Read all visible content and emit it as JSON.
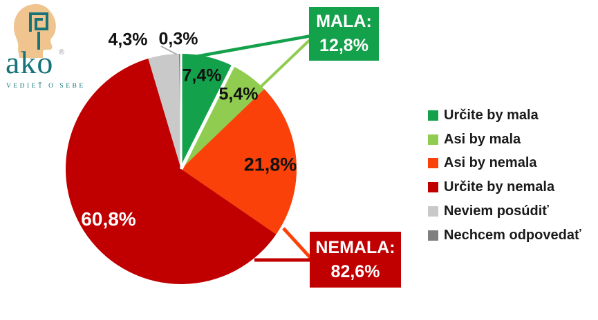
{
  "logo": {
    "brand": "ako",
    "registered": "®",
    "tagline": "VEDIEŤ O SEBE"
  },
  "chart_data": {
    "type": "pie",
    "title": "",
    "start_angle_deg": 0,
    "direction": "clockwise",
    "slices": [
      {
        "name": "Určite by mala",
        "value": 7.4,
        "label": "7,4%",
        "color": "#14A14B"
      },
      {
        "name": "Asi by mala",
        "value": 5.4,
        "label": "5,4%",
        "color": "#8FCC50"
      },
      {
        "name": "Asi by nemala",
        "value": 21.8,
        "label": "21,8%",
        "color": "#F94109"
      },
      {
        "name": "Určite by nemala",
        "value": 60.8,
        "label": "60,8%",
        "color": "#C00000"
      },
      {
        "name": "Neviem posúdiť",
        "value": 4.3,
        "label": "4,3%",
        "color": "#C9C9C9"
      },
      {
        "name": "Nechcem odpovedať",
        "value": 0.3,
        "label": "0,3%",
        "color": "#7F7F7F"
      }
    ],
    "callouts": [
      {
        "title": "MALA:",
        "value": "12,8%",
        "color": "#14A14B"
      },
      {
        "title": "NEMALA:",
        "value": "82,6%",
        "color": "#C00000"
      }
    ],
    "legend_position": "right"
  }
}
